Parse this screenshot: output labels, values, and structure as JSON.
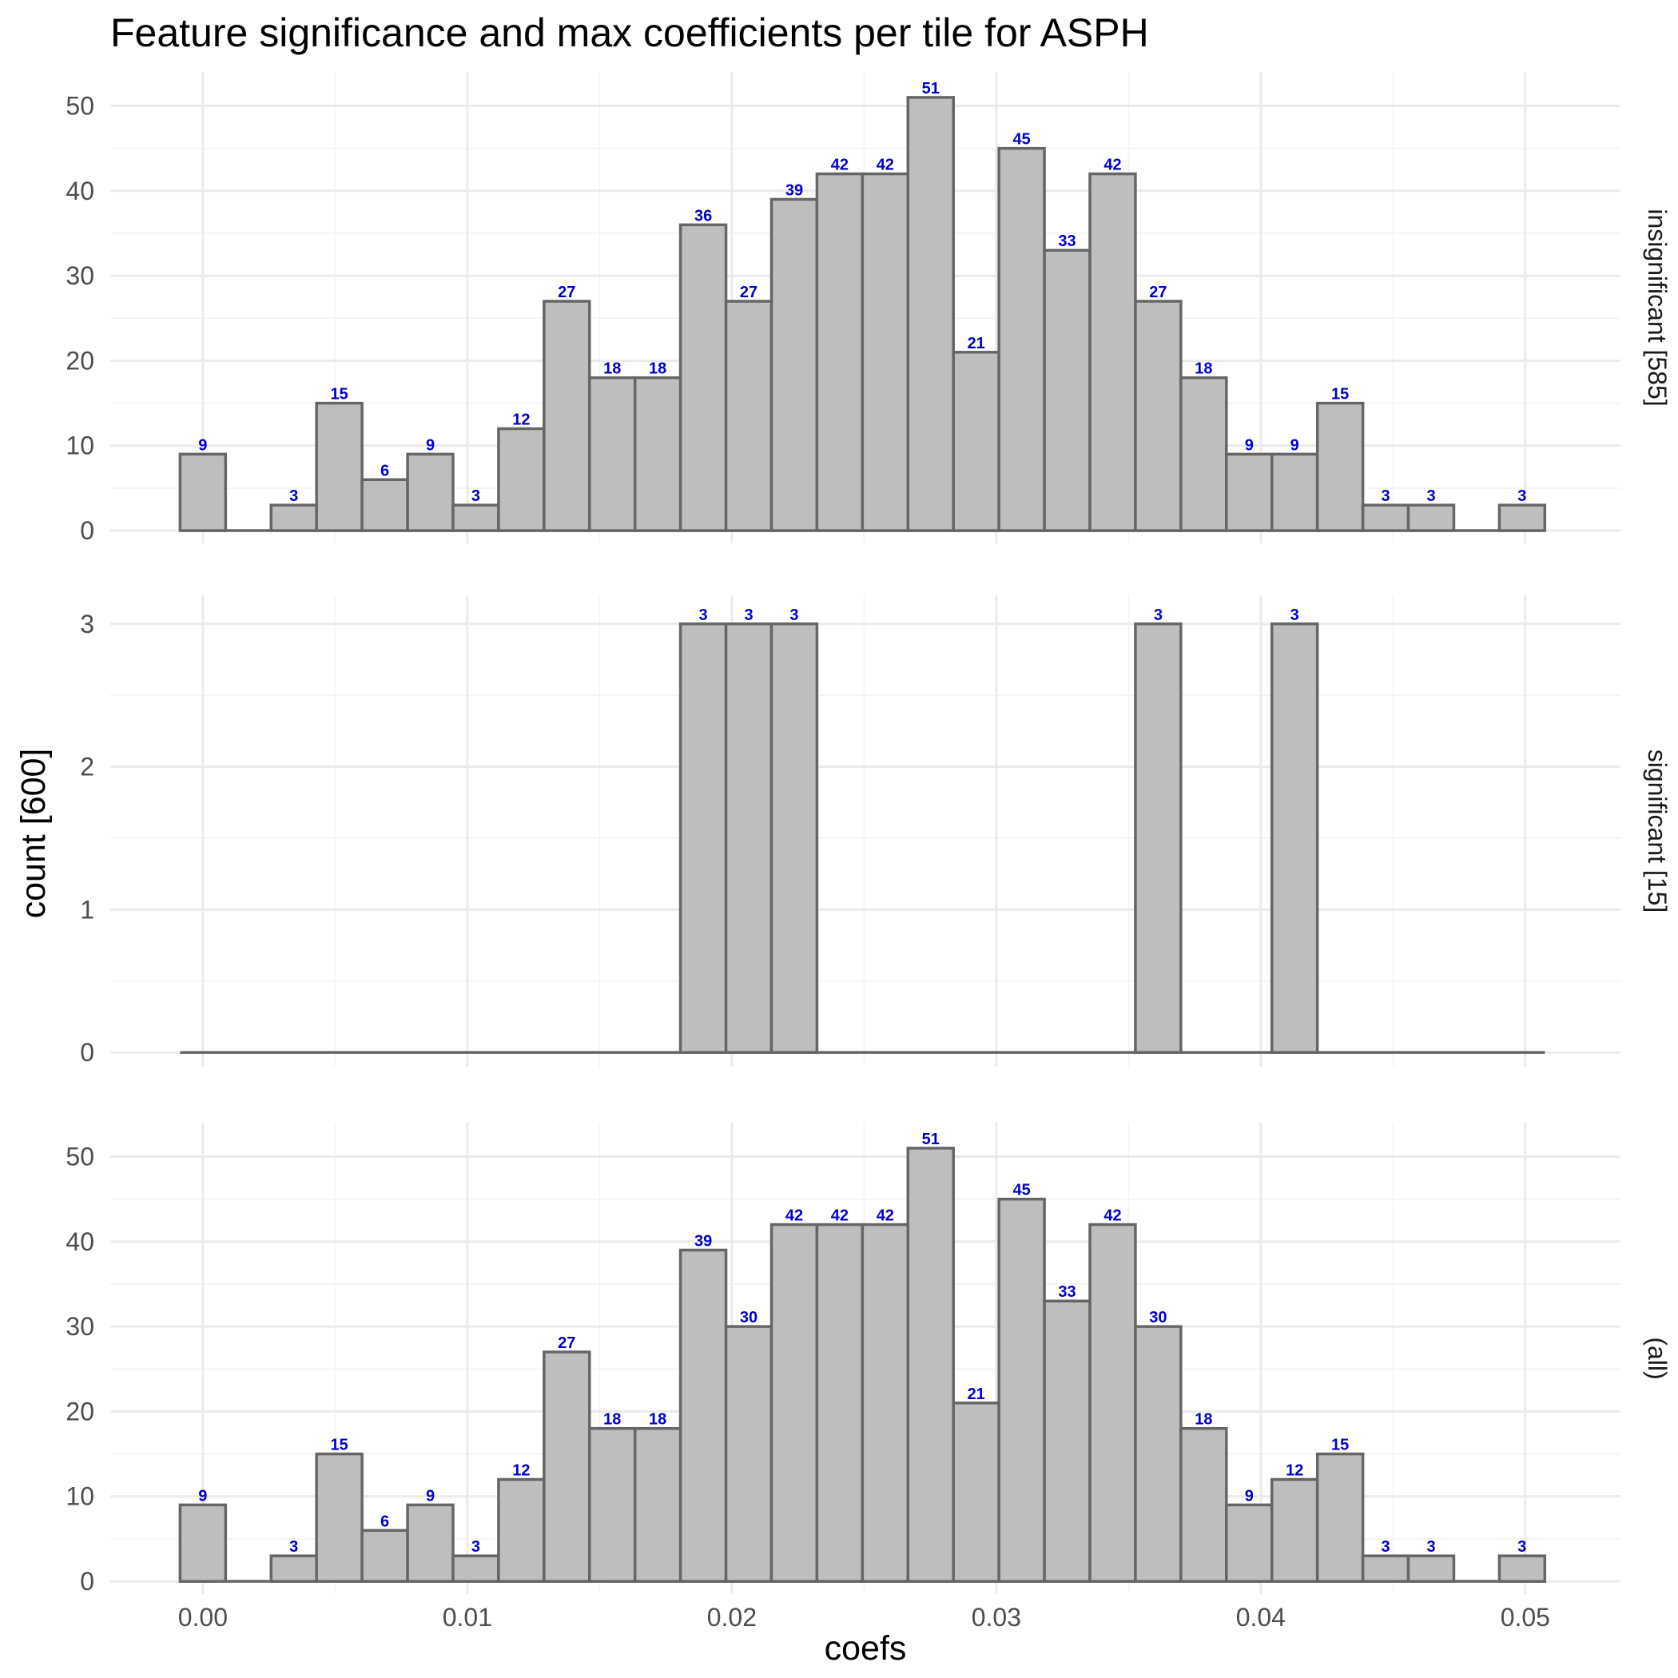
{
  "chart_data": {
    "type": "bar",
    "title": "Feature significance and max coefficients per tile for ASPH",
    "xlabel": "coefs",
    "ylabel": "count [600]",
    "x_ticks": [
      "0.00",
      "0.01",
      "0.02",
      "0.03",
      "0.04",
      "0.05"
    ],
    "x_tick_values": [
      0.0,
      0.01,
      0.02,
      0.03,
      0.04,
      0.05
    ],
    "xlim": [
      -0.0035,
      0.0536
    ],
    "bin_start": -0.00086,
    "bin_width": 0.00172,
    "bar_fill": "#bebebe",
    "bar_stroke": "#666666",
    "label_color": "#0000cc",
    "grid": true,
    "facets": [
      {
        "strip": "insignificant [585]",
        "ylim": [
          -1.5,
          54
        ],
        "y_ticks": [
          0,
          10,
          20,
          30,
          40,
          50
        ],
        "values": [
          9,
          0,
          3,
          15,
          6,
          9,
          3,
          12,
          27,
          18,
          18,
          36,
          27,
          39,
          42,
          42,
          51,
          21,
          45,
          33,
          42,
          27,
          18,
          9,
          9,
          15,
          3,
          3,
          0,
          3
        ]
      },
      {
        "strip": "significant [15]",
        "ylim": [
          -0.1,
          3.2
        ],
        "y_ticks": [
          0,
          1,
          2,
          3
        ],
        "values": [
          0,
          0,
          0,
          0,
          0,
          0,
          0,
          0,
          0,
          0,
          0,
          3,
          3,
          3,
          0,
          0,
          0,
          0,
          0,
          0,
          0,
          3,
          0,
          0,
          3,
          0,
          0,
          0,
          0,
          0
        ]
      },
      {
        "strip": "(all)",
        "ylim": [
          -1.5,
          54
        ],
        "y_ticks": [
          0,
          10,
          20,
          30,
          40,
          50
        ],
        "values": [
          9,
          0,
          3,
          15,
          6,
          9,
          3,
          12,
          27,
          18,
          18,
          39,
          30,
          42,
          42,
          42,
          51,
          21,
          45,
          33,
          42,
          30,
          18,
          9,
          12,
          15,
          3,
          3,
          0,
          3
        ]
      }
    ]
  }
}
